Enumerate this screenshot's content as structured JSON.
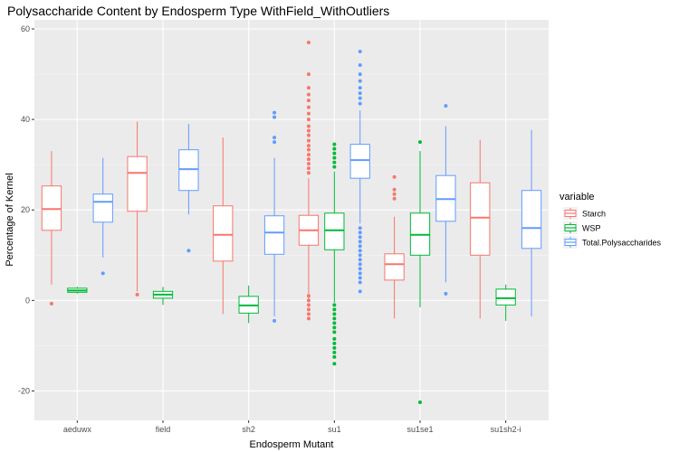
{
  "chart_data": {
    "type": "boxplot",
    "title": "Polysaccharide Content by Endosperm Type WithField_WithOutliers",
    "xlabel": "Endosperm Mutant",
    "ylabel": "Percentage of Kernel",
    "ylim": [
      -26.5,
      62
    ],
    "yticks": [
      -20,
      0,
      20,
      40,
      60
    ],
    "grid": true,
    "legend_position": "right",
    "legend_title": "variable",
    "categories": [
      "aeduwx",
      "field",
      "sh2",
      "su1",
      "su1se1",
      "su1sh2-i"
    ],
    "series": [
      {
        "name": "Starch",
        "color": "#F8766D",
        "boxes": [
          {
            "min": 3.5,
            "q1": 15.5,
            "median": 20.2,
            "q3": 25.3,
            "max": 33,
            "outliers": [
              -0.7
            ]
          },
          {
            "min": 2,
            "q1": 19.7,
            "median": 28.2,
            "q3": 31.8,
            "max": 39.5,
            "outliers": [
              1.3
            ]
          },
          {
            "min": -3,
            "q1": 8.7,
            "median": 14.5,
            "q3": 20.9,
            "max": 36,
            "outliers": []
          },
          {
            "min": 0,
            "q1": 12.2,
            "median": 15.5,
            "q3": 18.8,
            "max": 27,
            "outliers": [
              57,
              50,
              47,
              45.5,
              44.2,
              42.7,
              41.3,
              40,
              38.5,
              37.5,
              36.5,
              35.3,
              34.2,
              33.3,
              32.2,
              31.2,
              30.2,
              29.2,
              28.2,
              1,
              0,
              -1,
              -2,
              -3,
              -4
            ]
          },
          {
            "min": -4,
            "q1": 4.5,
            "median": 8,
            "q3": 10.3,
            "max": 18.5,
            "outliers": [
              27.3,
              24.5,
              23.5,
              22.5
            ]
          },
          {
            "min": -4,
            "q1": 10,
            "median": 18.3,
            "q3": 26,
            "max": 35.5,
            "outliers": []
          }
        ]
      },
      {
        "name": "WSP",
        "color": "#00BA38",
        "boxes": [
          {
            "min": 1.5,
            "q1": 1.8,
            "median": 2.2,
            "q3": 2.7,
            "max": 3,
            "outliers": []
          },
          {
            "min": -1,
            "q1": 0.5,
            "median": 1.3,
            "q3": 2,
            "max": 3,
            "outliers": []
          },
          {
            "min": -5,
            "q1": -2.8,
            "median": -1.1,
            "q3": 0.9,
            "max": 3.3,
            "outliers": []
          },
          {
            "min": -0.5,
            "q1": 11.2,
            "median": 15.5,
            "q3": 19.3,
            "max": 28.5,
            "outliers": [
              34.5,
              33.5,
              32.5,
              31.5,
              30.5,
              29.5,
              -1,
              -2,
              -3,
              -4,
              -5,
              -6,
              -7,
              -8.5,
              -9.5,
              -10.5,
              -11.5,
              -12.5,
              -14
            ]
          },
          {
            "min": -1.5,
            "q1": 10,
            "median": 14.5,
            "q3": 19.3,
            "max": 33,
            "outliers": [
              35,
              -22.5
            ]
          },
          {
            "min": -4.5,
            "q1": -1,
            "median": 0.5,
            "q3": 2.5,
            "max": 3.5,
            "outliers": []
          }
        ]
      },
      {
        "name": "Total.Polysaccharides",
        "color": "#619CFF",
        "boxes": [
          {
            "min": 9.5,
            "q1": 17.3,
            "median": 21.8,
            "q3": 23.5,
            "max": 31.5,
            "outliers": [
              6
            ]
          },
          {
            "min": 19,
            "q1": 24.3,
            "median": 29,
            "q3": 33.3,
            "max": 39,
            "outliers": [
              11
            ]
          },
          {
            "min": -3.5,
            "q1": 10.2,
            "median": 15,
            "q3": 18.7,
            "max": 31.5,
            "outliers": [
              41.5,
              40.5,
              36,
              35,
              -4.5
            ]
          },
          {
            "min": 17,
            "q1": 27,
            "median": 31,
            "q3": 34.5,
            "max": 42,
            "outliers": [
              55,
              52,
              50,
              48.5,
              47,
              45.8,
              44.7,
              43.5,
              16,
              15,
              14,
              13,
              12,
              11,
              10,
              9,
              8,
              7,
              6,
              5,
              4,
              2
            ]
          },
          {
            "min": 4,
            "q1": 17.5,
            "median": 22.4,
            "q3": 27.6,
            "max": 38.5,
            "outliers": [
              43,
              1.5
            ]
          },
          {
            "min": -3.5,
            "q1": 11.5,
            "median": 16,
            "q3": 24.3,
            "max": 37.7,
            "outliers": []
          }
        ]
      }
    ]
  }
}
